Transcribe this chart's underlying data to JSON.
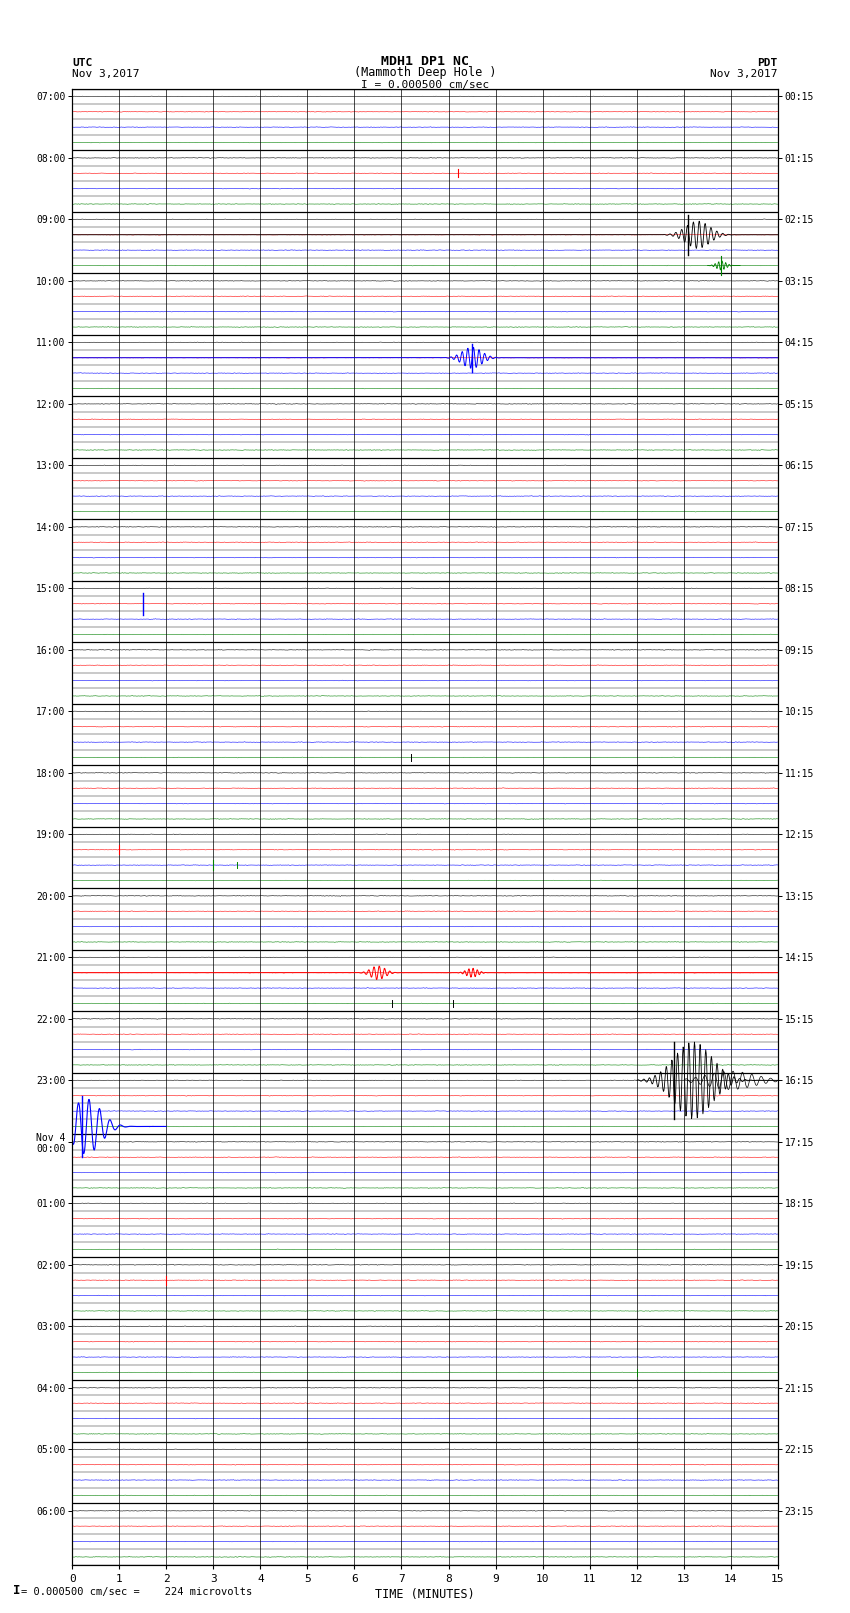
{
  "title_line1": "MDH1 DP1 NC",
  "title_line2": "(Mammoth Deep Hole )",
  "scale_label": "I = 0.000500 cm/sec",
  "left_label": "UTC",
  "left_date": "Nov 3,2017",
  "right_label": "PDT",
  "right_date": "Nov 3,2017",
  "xlabel": "TIME (MINUTES)",
  "footer": "= 0.000500 cm/sec =    224 microvolts",
  "xlim": [
    0,
    15
  ],
  "utc_hour_labels": [
    "07:00",
    "08:00",
    "09:00",
    "10:00",
    "11:00",
    "12:00",
    "13:00",
    "14:00",
    "15:00",
    "16:00",
    "17:00",
    "18:00",
    "19:00",
    "20:00",
    "21:00",
    "22:00",
    "23:00",
    "Nov 4\n00:00",
    "01:00",
    "02:00",
    "03:00",
    "04:00",
    "05:00",
    "06:00"
  ],
  "pdt_hour_labels": [
    "00:15",
    "01:15",
    "02:15",
    "03:15",
    "04:15",
    "05:15",
    "06:15",
    "07:15",
    "08:15",
    "09:15",
    "10:15",
    "11:15",
    "12:15",
    "13:15",
    "14:15",
    "15:15",
    "16:15",
    "17:15",
    "18:15",
    "19:15",
    "20:15",
    "21:15",
    "22:15",
    "23:15"
  ],
  "n_hours": 24,
  "rows_per_hour": 4,
  "bg_color": "#ffffff",
  "trace_colors_per_hour": [
    "black",
    "red",
    "blue",
    "green"
  ],
  "noise_amplitude": 0.012,
  "random_seed": 12345,
  "major_lw": 0.9,
  "minor_lw": 0.3,
  "trace_lw": 0.4
}
